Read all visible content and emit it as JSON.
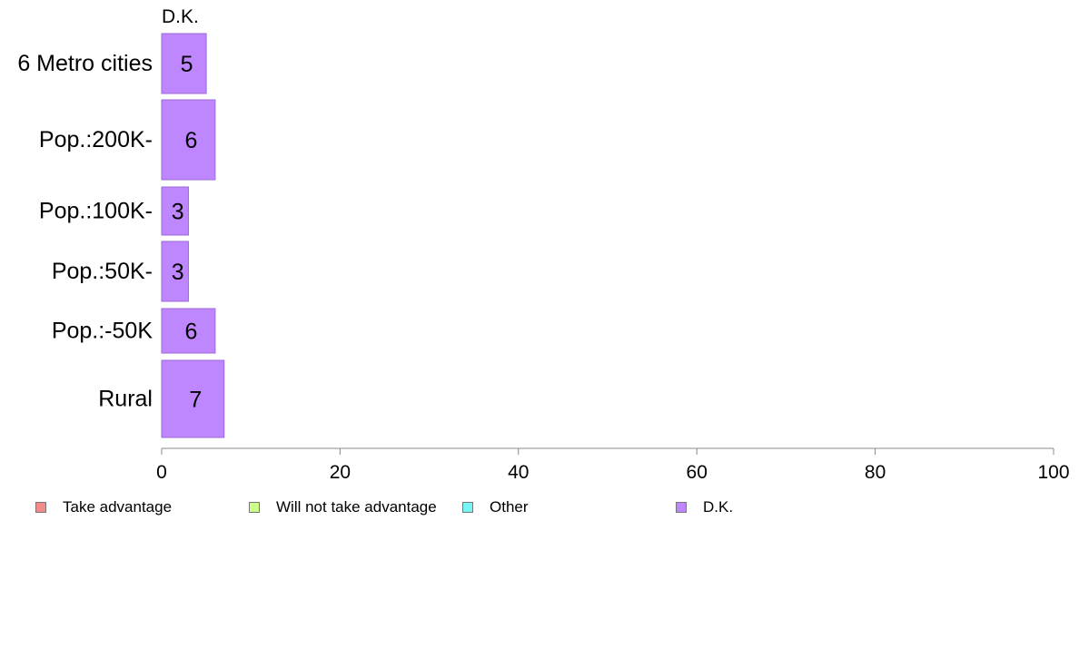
{
  "chart_data": {
    "type": "bar",
    "orientation": "horizontal",
    "panel_title": "D.K.",
    "categories": [
      "6 Metro cities",
      "Pop.:200K-",
      "Pop.:100K-",
      "Pop.:50K-",
      "Pop.:-50K",
      "Rural"
    ],
    "series": [
      {
        "name": "D.K.",
        "values": [
          5,
          6,
          3,
          3,
          6,
          7
        ],
        "labels": [
          "5",
          "6",
          "3",
          "3",
          "6",
          "7"
        ],
        "color": "#bf87ff"
      }
    ],
    "xlim": [
      0,
      100
    ],
    "xticks": [
      0,
      20,
      40,
      60,
      80,
      100
    ],
    "grid": false,
    "legend_position": "bottom"
  },
  "legend": {
    "items": [
      {
        "label": "Take advantage",
        "color": "#f28b8b"
      },
      {
        "label": "Will not take advantage",
        "color": "#ccff88"
      },
      {
        "label": "Other",
        "color": "#77f5f5"
      },
      {
        "label": "D.K.",
        "color": "#bf87ff"
      }
    ]
  }
}
